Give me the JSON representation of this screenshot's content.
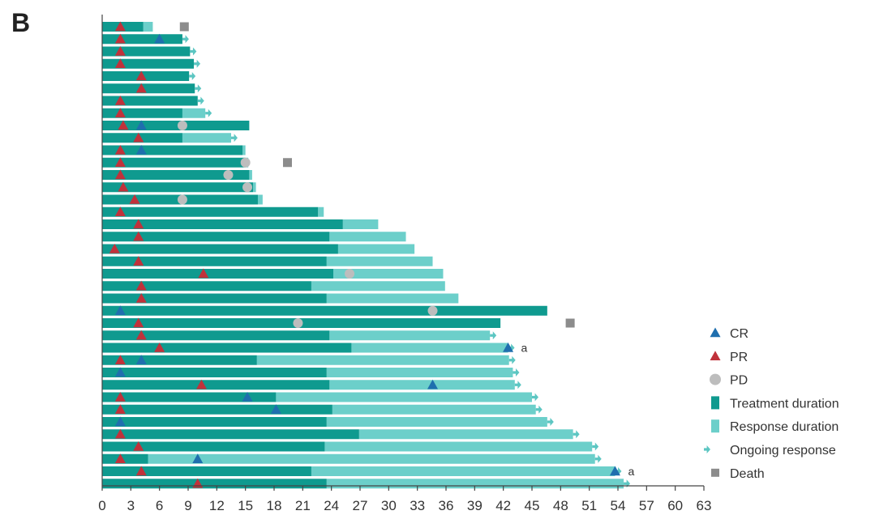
{
  "panel_label": "B",
  "colors": {
    "treatment": "#0f9a8f",
    "response": "#6ccfca",
    "ongoing": "#5cc6c2",
    "cr": "#1f6fae",
    "pr": "#c0323b",
    "pd": "#bdbdbd",
    "death": "#8c8c8c"
  },
  "chart_data": {
    "type": "swimmer",
    "title": "",
    "xlabel": "",
    "ylabel": "",
    "xlim": [
      0,
      63
    ],
    "x_ticks": [
      "0",
      "3",
      "6",
      "9",
      "12",
      "15",
      "18",
      "21",
      "24",
      "27",
      "30",
      "33",
      "36",
      "39",
      "42",
      "45",
      "48",
      "51",
      "54",
      "57",
      "60",
      "63"
    ],
    "legend": [
      "CR",
      "PR",
      "PD",
      "Treatment duration",
      "Response duration",
      "Ongoing response",
      "Death"
    ],
    "legend_position": "bottom-right",
    "patients": [
      {
        "treatment": 4.3,
        "response": 5.3,
        "ongoing": false,
        "pr": [
          1.9
        ],
        "cr": [],
        "pd": [],
        "death": 8.6,
        "note": ""
      },
      {
        "treatment": 8.4,
        "response": 8.4,
        "ongoing": true,
        "pr": [
          1.9
        ],
        "cr": [
          6.0
        ],
        "pd": [],
        "death": null,
        "note": ""
      },
      {
        "treatment": 9.2,
        "response": 9.2,
        "ongoing": true,
        "pr": [
          1.9
        ],
        "cr": [],
        "pd": [],
        "death": null,
        "note": ""
      },
      {
        "treatment": 9.6,
        "response": 9.6,
        "ongoing": true,
        "pr": [
          1.9
        ],
        "cr": [],
        "pd": [],
        "death": null,
        "note": ""
      },
      {
        "treatment": 9.1,
        "response": 9.1,
        "ongoing": true,
        "pr": [
          4.1
        ],
        "cr": [],
        "pd": [],
        "death": null,
        "note": ""
      },
      {
        "treatment": 9.7,
        "response": 9.7,
        "ongoing": true,
        "pr": [
          4.1
        ],
        "cr": [],
        "pd": [],
        "death": null,
        "note": ""
      },
      {
        "treatment": 10.0,
        "response": 10.0,
        "ongoing": true,
        "pr": [
          1.9
        ],
        "cr": [],
        "pd": [],
        "death": null,
        "note": ""
      },
      {
        "treatment": 8.4,
        "response": 10.8,
        "ongoing": true,
        "pr": [
          1.9
        ],
        "cr": [],
        "pd": [],
        "death": null,
        "note": ""
      },
      {
        "treatment": 15.4,
        "response": 15.4,
        "ongoing": false,
        "pr": [
          2.2
        ],
        "cr": [
          4.1
        ],
        "pd": [
          8.4
        ],
        "death": null,
        "note": ""
      },
      {
        "treatment": 8.4,
        "response": 13.5,
        "ongoing": true,
        "pr": [
          3.8
        ],
        "cr": [],
        "pd": [],
        "death": null,
        "note": ""
      },
      {
        "treatment": 14.7,
        "response": 15.0,
        "ongoing": false,
        "pr": [
          1.9
        ],
        "cr": [
          4.1
        ],
        "pd": [],
        "death": null,
        "note": ""
      },
      {
        "treatment": 15.0,
        "response": 15.3,
        "ongoing": false,
        "pr": [
          1.9
        ],
        "cr": [],
        "pd": [
          15.0
        ],
        "death": 19.4,
        "note": ""
      },
      {
        "treatment": 15.4,
        "response": 15.7,
        "ongoing": false,
        "pr": [
          1.9
        ],
        "cr": [],
        "pd": [
          13.2
        ],
        "death": null,
        "note": ""
      },
      {
        "treatment": 15.8,
        "response": 16.1,
        "ongoing": false,
        "pr": [
          2.2
        ],
        "cr": [],
        "pd": [
          15.2
        ],
        "death": null,
        "note": ""
      },
      {
        "treatment": 16.3,
        "response": 16.8,
        "ongoing": false,
        "pr": [
          3.4
        ],
        "cr": [],
        "pd": [
          8.4
        ],
        "death": null,
        "note": ""
      },
      {
        "treatment": 22.6,
        "response": 23.2,
        "ongoing": false,
        "pr": [
          1.9
        ],
        "cr": [],
        "pd": [],
        "death": null,
        "note": ""
      },
      {
        "treatment": 25.2,
        "response": 28.9,
        "ongoing": false,
        "pr": [
          3.8
        ],
        "cr": [],
        "pd": [],
        "death": null,
        "note": ""
      },
      {
        "treatment": 23.8,
        "response": 31.8,
        "ongoing": false,
        "pr": [
          3.8
        ],
        "cr": [],
        "pd": [],
        "death": null,
        "note": ""
      },
      {
        "treatment": 24.7,
        "response": 32.7,
        "ongoing": false,
        "pr": [
          1.3
        ],
        "cr": [],
        "pd": [],
        "death": null,
        "note": ""
      },
      {
        "treatment": 23.5,
        "response": 34.6,
        "ongoing": false,
        "pr": [
          3.8
        ],
        "cr": [],
        "pd": [],
        "death": null,
        "note": ""
      },
      {
        "treatment": 24.2,
        "response": 35.7,
        "ongoing": false,
        "pr": [
          10.6
        ],
        "cr": [],
        "pd": [
          25.9
        ],
        "death": null,
        "note": ""
      },
      {
        "treatment": 21.9,
        "response": 35.9,
        "ongoing": false,
        "pr": [
          4.1
        ],
        "cr": [],
        "pd": [],
        "death": null,
        "note": ""
      },
      {
        "treatment": 23.5,
        "response": 37.3,
        "ongoing": false,
        "pr": [
          4.1
        ],
        "cr": [],
        "pd": [],
        "death": null,
        "note": ""
      },
      {
        "treatment": 46.6,
        "response": 46.6,
        "ongoing": false,
        "pr": [],
        "cr": [
          1.9
        ],
        "pd": [
          34.6
        ],
        "death": null,
        "note": ""
      },
      {
        "treatment": 41.7,
        "response": 41.7,
        "ongoing": false,
        "pr": [
          3.8
        ],
        "cr": [],
        "pd": [
          20.5
        ],
        "death": 49.0,
        "note": ""
      },
      {
        "treatment": 23.8,
        "response": 40.6,
        "ongoing": true,
        "pr": [
          4.1
        ],
        "cr": [],
        "pd": [],
        "death": null,
        "note": ""
      },
      {
        "treatment": 26.1,
        "response": 42.5,
        "ongoing": true,
        "pr": [
          6.0
        ],
        "cr": [
          42.5
        ],
        "pd": [],
        "death": null,
        "note": "a"
      },
      {
        "treatment": 16.2,
        "response": 42.6,
        "ongoing": true,
        "pr": [
          1.9
        ],
        "cr": [
          4.1
        ],
        "pd": [],
        "death": null,
        "note": ""
      },
      {
        "treatment": 23.5,
        "response": 43.0,
        "ongoing": true,
        "pr": [],
        "cr": [
          1.9
        ],
        "pd": [],
        "death": null,
        "note": ""
      },
      {
        "treatment": 23.8,
        "response": 43.2,
        "ongoing": true,
        "pr": [
          10.4
        ],
        "cr": [
          34.6
        ],
        "pd": [],
        "death": null,
        "note": ""
      },
      {
        "treatment": 18.2,
        "response": 45.0,
        "ongoing": true,
        "pr": [
          1.9
        ],
        "cr": [
          15.2
        ],
        "pd": [],
        "death": null,
        "note": ""
      },
      {
        "treatment": 24.1,
        "response": 45.4,
        "ongoing": true,
        "pr": [
          1.9
        ],
        "cr": [
          18.2
        ],
        "pd": [],
        "death": null,
        "note": ""
      },
      {
        "treatment": 23.5,
        "response": 46.6,
        "ongoing": true,
        "pr": [],
        "cr": [
          1.9
        ],
        "pd": [],
        "death": null,
        "note": ""
      },
      {
        "treatment": 26.9,
        "response": 49.3,
        "ongoing": true,
        "pr": [
          1.9
        ],
        "cr": [],
        "pd": [],
        "death": null,
        "note": ""
      },
      {
        "treatment": 23.3,
        "response": 51.3,
        "ongoing": true,
        "pr": [
          3.8
        ],
        "cr": [],
        "pd": [],
        "death": null,
        "note": ""
      },
      {
        "treatment": 4.8,
        "response": 51.6,
        "ongoing": true,
        "pr": [
          1.9
        ],
        "cr": [
          10.0
        ],
        "pd": [],
        "death": null,
        "note": ""
      },
      {
        "treatment": 21.9,
        "response": 53.7,
        "ongoing": true,
        "pr": [
          4.1
        ],
        "cr": [
          53.7
        ],
        "pd": [],
        "death": null,
        "note": "a"
      },
      {
        "treatment": 23.5,
        "response": 54.6,
        "ongoing": true,
        "pr": [
          10.0
        ],
        "cr": [],
        "pd": [],
        "death": null,
        "note": ""
      }
    ]
  }
}
